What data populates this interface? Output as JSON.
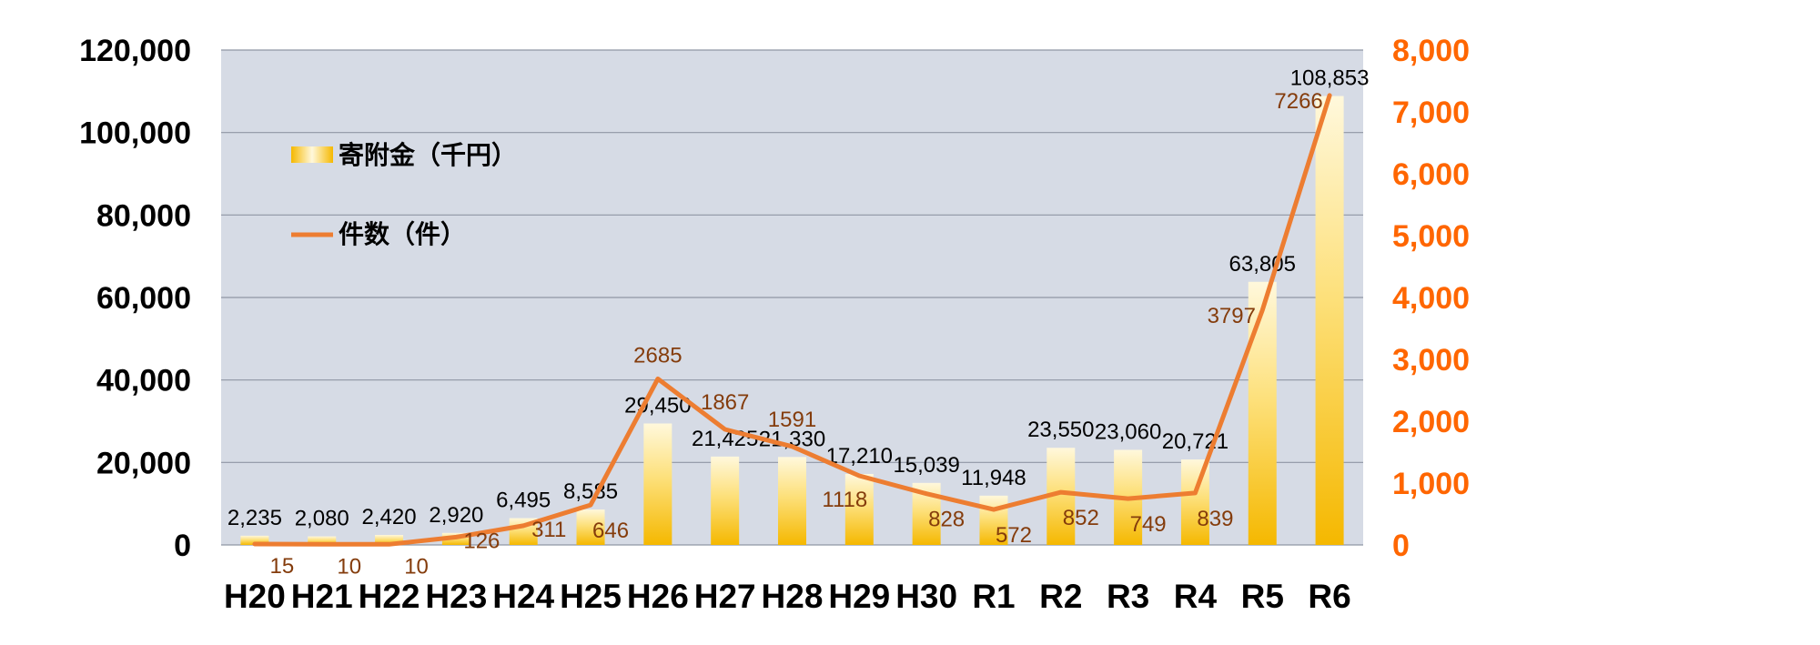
{
  "chart_data": {
    "type": "bar",
    "categories": [
      "H20",
      "H21",
      "H22",
      "H23",
      "H24",
      "H25",
      "H26",
      "H27",
      "H28",
      "H29",
      "H30",
      "R1",
      "R2",
      "R3",
      "R4",
      "R5",
      "R6"
    ],
    "series": [
      {
        "name": "寄附金（千円）",
        "type": "bar",
        "axis": "left",
        "values": [
          2235,
          2080,
          2420,
          2920,
          6495,
          8585,
          29450,
          21425,
          21330,
          17210,
          15039,
          11948,
          23550,
          23060,
          20721,
          63805,
          108853
        ],
        "labels": [
          "2,235",
          "2,080",
          "2,420",
          "2,920",
          "6,495",
          "8,585",
          "29,450",
          "21,425",
          "21,330",
          "17,210",
          "15,039",
          "11,948",
          "23,550",
          "23,060",
          "20,721",
          "63,805",
          "108,853"
        ]
      },
      {
        "name": "件数（件）",
        "type": "line",
        "axis": "right",
        "values": [
          15,
          10,
          10,
          126,
          311,
          646,
          2685,
          1867,
          1591,
          1118,
          828,
          572,
          852,
          749,
          839,
          3797,
          7266
        ],
        "labels": [
          "15",
          "10",
          "10",
          "126",
          "311",
          "646",
          "2685",
          "1867",
          "1591",
          "1118",
          "828",
          "572",
          "852",
          "749",
          "839",
          "3797",
          "7266"
        ]
      }
    ],
    "left_axis": {
      "ylim": [
        0,
        120000
      ],
      "ticks": [
        "0",
        "20,000",
        "40,000",
        "60,000",
        "80,000",
        "100,000",
        "120,000"
      ]
    },
    "right_axis": {
      "ylim": [
        0,
        8000
      ],
      "ticks": [
        "0",
        "1,000",
        "2,000",
        "3,000",
        "4,000",
        "5,000",
        "6,000",
        "7,000",
        "8,000"
      ]
    },
    "grid": true,
    "legend_position": "top-left inside plot",
    "colors": {
      "plot_background": "#d6dbe5",
      "grid": "#8f96a3",
      "bar_top": "#fff8dc",
      "bar_bottom": "#f5b800",
      "line": "#ed7d31",
      "line_label": "#843c0c",
      "right_axis": "#ff6600"
    }
  }
}
